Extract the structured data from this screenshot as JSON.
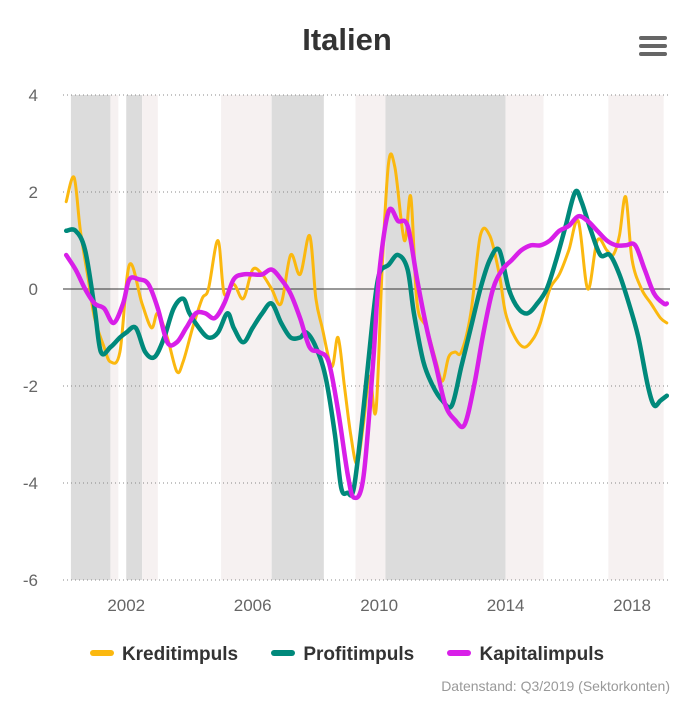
{
  "title": "Italien",
  "menu_icon": "hamburger-menu-icon",
  "credit": "Datenstand: Q3/2019 (Sektorkonten)",
  "legend": [
    {
      "label": "Kreditimpuls",
      "color": "#fbb80f"
    },
    {
      "label": "Profitimpuls",
      "color": "#00897b"
    },
    {
      "label": "Kapitalimpuls",
      "color": "#d81fe8"
    }
  ],
  "chart_data": {
    "type": "line",
    "title": "Italien",
    "xlim": [
      2000.0,
      2019.2
    ],
    "ylim": [
      -6,
      4
    ],
    "x_ticks": [
      "2002",
      "2006",
      "2010",
      "2014",
      "2018"
    ],
    "y_ticks": [
      "4",
      "2",
      "0",
      "-2",
      "-4",
      "-6"
    ],
    "grid": "horizontal dotted",
    "legend_position": "bottom",
    "shaded_periods": [
      {
        "start": 2000.25,
        "end": 2001.5,
        "shade": "dark"
      },
      {
        "start": 2001.5,
        "end": 2001.75,
        "shade": "light"
      },
      {
        "start": 2002.0,
        "end": 2002.5,
        "shade": "dark"
      },
      {
        "start": 2002.5,
        "end": 2003.0,
        "shade": "light"
      },
      {
        "start": 2005.0,
        "end": 2006.6,
        "shade": "light"
      },
      {
        "start": 2006.6,
        "end": 2008.25,
        "shade": "dark"
      },
      {
        "start": 2009.25,
        "end": 2010.2,
        "shade": "light"
      },
      {
        "start": 2010.2,
        "end": 2014.0,
        "shade": "dark"
      },
      {
        "start": 2014.0,
        "end": 2015.2,
        "shade": "light"
      },
      {
        "start": 2017.25,
        "end": 2019.0,
        "shade": "light"
      }
    ],
    "series": [
      {
        "name": "Kreditimpuls",
        "color": "#fbb80f",
        "x": [
          2000.1,
          2000.35,
          2000.55,
          2000.8,
          2001.0,
          2001.3,
          2001.5,
          2001.8,
          2002.1,
          2002.5,
          2002.8,
          2003.0,
          2003.3,
          2003.6,
          2003.8,
          2004.1,
          2004.4,
          2004.6,
          2004.9,
          2005.1,
          2005.4,
          2005.7,
          2006.0,
          2006.3,
          2006.6,
          2006.9,
          2007.2,
          2007.5,
          2007.8,
          2008.0,
          2008.2,
          2008.5,
          2008.7,
          2008.9,
          2009.1,
          2009.3,
          2009.5,
          2009.7,
          2009.9,
          2010.1,
          2010.3,
          2010.5,
          2010.8,
          2011.0,
          2011.2,
          2011.5,
          2011.8,
          2012.0,
          2012.2,
          2012.4,
          2012.6,
          2012.9,
          2013.2,
          2013.5,
          2013.8,
          2014.0,
          2014.3,
          2014.6,
          2014.9,
          2015.1,
          2015.4,
          2015.7,
          2016.0,
          2016.3,
          2016.6,
          2016.9,
          2017.2,
          2017.4,
          2017.6,
          2017.8,
          2018.0,
          2018.3,
          2018.6,
          2018.9,
          2019.1
        ],
        "values": [
          1.8,
          2.3,
          1.2,
          0.2,
          -0.6,
          -1.2,
          -1.5,
          -1.3,
          0.5,
          -0.3,
          -0.8,
          -0.5,
          -1.0,
          -1.7,
          -1.5,
          -0.8,
          -0.2,
          0.0,
          1.0,
          -0.1,
          0.1,
          -0.2,
          0.4,
          0.3,
          0.0,
          -0.3,
          0.7,
          0.3,
          1.1,
          -0.2,
          -0.8,
          -1.6,
          -1.0,
          -2.0,
          -3.0,
          -3.6,
          -2.8,
          -1.8,
          -2.5,
          0.5,
          2.6,
          2.5,
          1.0,
          1.9,
          -0.3,
          -0.8,
          -1.5,
          -1.9,
          -1.4,
          -1.3,
          -1.3,
          -0.5,
          1.1,
          1.1,
          0.3,
          -0.5,
          -1.0,
          -1.2,
          -1.0,
          -0.7,
          0.0,
          0.3,
          0.8,
          1.4,
          0.0,
          1.0,
          0.8,
          0.7,
          1.1,
          1.9,
          0.6,
          0.0,
          -0.3,
          -0.6,
          -0.7
        ]
      },
      {
        "name": "Profitimpuls",
        "color": "#00897b",
        "x": [
          2000.1,
          2000.4,
          2000.7,
          2001.0,
          2001.2,
          2001.5,
          2001.8,
          2002.0,
          2002.3,
          2002.6,
          2002.9,
          2003.2,
          2003.5,
          2003.8,
          2004.0,
          2004.3,
          2004.6,
          2004.9,
          2005.2,
          2005.4,
          2005.7,
          2006.0,
          2006.3,
          2006.6,
          2006.9,
          2007.2,
          2007.5,
          2007.7,
          2008.0,
          2008.3,
          2008.6,
          2008.8,
          2009.0,
          2009.2,
          2009.5,
          2009.8,
          2010.0,
          2010.3,
          2010.6,
          2010.9,
          2011.1,
          2011.4,
          2011.7,
          2012.0,
          2012.3,
          2012.6,
          2012.9,
          2013.2,
          2013.5,
          2013.8,
          2014.1,
          2014.4,
          2014.7,
          2015.0,
          2015.3,
          2015.6,
          2015.9,
          2016.2,
          2016.4,
          2016.7,
          2017.0,
          2017.3,
          2017.6,
          2017.9,
          2018.2,
          2018.5,
          2018.7,
          2018.9,
          2019.1
        ],
        "values": [
          1.2,
          1.2,
          0.8,
          -0.4,
          -1.3,
          -1.2,
          -1.0,
          -0.9,
          -0.8,
          -1.3,
          -1.4,
          -1.0,
          -0.4,
          -0.2,
          -0.5,
          -0.8,
          -1.0,
          -0.9,
          -0.5,
          -0.8,
          -1.1,
          -0.8,
          -0.5,
          -0.3,
          -0.7,
          -1.0,
          -1.0,
          -0.9,
          -1.2,
          -1.8,
          -3.0,
          -4.1,
          -4.2,
          -4.1,
          -2.5,
          -0.6,
          0.3,
          0.5,
          0.7,
          0.4,
          -0.5,
          -1.5,
          -2.0,
          -2.3,
          -2.4,
          -1.6,
          -0.8,
          0.0,
          0.6,
          0.8,
          0.0,
          -0.4,
          -0.5,
          -0.3,
          0.0,
          0.6,
          1.3,
          2.0,
          1.8,
          1.2,
          0.7,
          0.7,
          0.3,
          -0.3,
          -1.0,
          -2.0,
          -2.4,
          -2.3,
          -2.2
        ]
      },
      {
        "name": "Kapitalimpuls",
        "color": "#d81fe8",
        "x": [
          2000.1,
          2000.4,
          2000.7,
          2001.0,
          2001.3,
          2001.6,
          2001.9,
          2002.1,
          2002.4,
          2002.7,
          2003.0,
          2003.3,
          2003.6,
          2003.9,
          2004.2,
          2004.5,
          2004.8,
          2005.1,
          2005.4,
          2005.7,
          2006.0,
          2006.3,
          2006.6,
          2006.9,
          2007.2,
          2007.5,
          2007.8,
          2008.1,
          2008.4,
          2008.7,
          2009.0,
          2009.2,
          2009.5,
          2009.8,
          2010.0,
          2010.3,
          2010.6,
          2010.9,
          2011.2,
          2011.5,
          2011.8,
          2012.1,
          2012.4,
          2012.7,
          2013.0,
          2013.3,
          2013.6,
          2013.9,
          2014.2,
          2014.5,
          2014.8,
          2015.1,
          2015.4,
          2015.7,
          2016.0,
          2016.3,
          2016.6,
          2016.9,
          2017.2,
          2017.5,
          2017.8,
          2018.1,
          2018.4,
          2018.7,
          2019.0,
          2019.1
        ],
        "values": [
          0.7,
          0.4,
          0.0,
          -0.3,
          -0.4,
          -0.7,
          -0.3,
          0.2,
          0.2,
          0.1,
          -0.4,
          -1.1,
          -1.1,
          -0.8,
          -0.5,
          -0.5,
          -0.6,
          -0.3,
          0.2,
          0.3,
          0.3,
          0.3,
          0.4,
          0.2,
          -0.1,
          -0.6,
          -1.2,
          -1.3,
          -1.5,
          -2.5,
          -3.8,
          -4.3,
          -3.9,
          -1.6,
          0.3,
          1.6,
          1.4,
          1.3,
          0.2,
          -0.8,
          -1.6,
          -2.4,
          -2.7,
          -2.8,
          -2.0,
          -0.9,
          0.0,
          0.4,
          0.6,
          0.8,
          0.9,
          0.9,
          1.0,
          1.2,
          1.3,
          1.5,
          1.4,
          1.2,
          1.0,
          0.9,
          0.9,
          0.9,
          0.4,
          -0.1,
          -0.3,
          -0.3
        ]
      }
    ]
  }
}
